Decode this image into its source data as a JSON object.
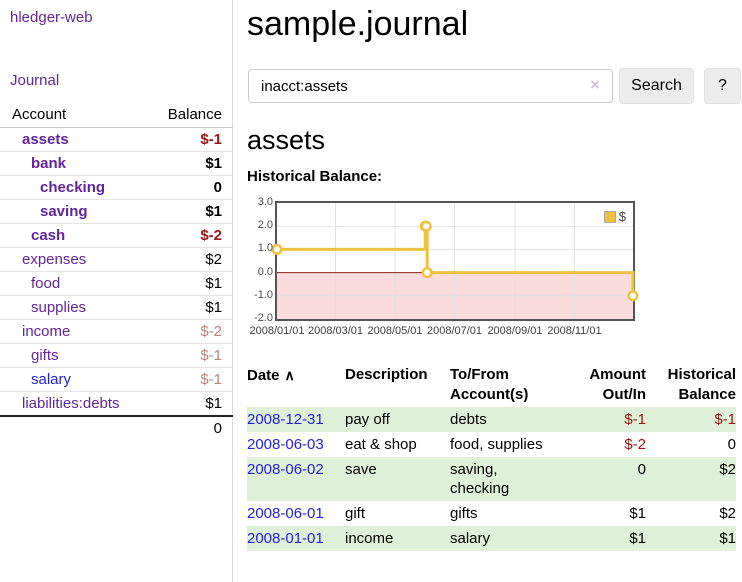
{
  "app_title": "hledger-web",
  "sidebar": {
    "journal_link": "Journal",
    "accounts": {
      "col_account": "Account",
      "col_balance": "Balance",
      "rows": [
        {
          "name": "assets",
          "depth": 1,
          "bold": true,
          "balance": "$-1",
          "neg": "strong"
        },
        {
          "name": "bank",
          "depth": 2,
          "bold": true,
          "balance": "$1",
          "neg": "none"
        },
        {
          "name": "checking",
          "depth": 3,
          "bold": true,
          "balance": "0",
          "neg": "none"
        },
        {
          "name": "saving",
          "depth": 3,
          "bold": true,
          "balance": "$1",
          "neg": "none"
        },
        {
          "name": "cash",
          "depth": 2,
          "bold": true,
          "balance": "$-2",
          "neg": "strong"
        },
        {
          "name": "expenses",
          "depth": 1,
          "bold": false,
          "balance": "$2",
          "neg": "none"
        },
        {
          "name": "food",
          "depth": 2,
          "bold": false,
          "balance": "$1",
          "neg": "none"
        },
        {
          "name": "supplies",
          "depth": 2,
          "bold": false,
          "balance": "$1",
          "neg": "none"
        },
        {
          "name": "income",
          "depth": 1,
          "bold": false,
          "balance": "$-2",
          "neg": "faded"
        },
        {
          "name": "gifts",
          "depth": 2,
          "bold": false,
          "balance": "$-1",
          "neg": "faded"
        },
        {
          "name": "salary",
          "depth": 2,
          "bold": false,
          "balance": "$-1",
          "neg": "faded",
          "link_color": "blue"
        },
        {
          "name": "liabilities:debts",
          "depth": 1,
          "bold": false,
          "balance": "$1",
          "neg": "none"
        }
      ],
      "total": "0"
    }
  },
  "main": {
    "title": "sample.journal",
    "search": {
      "value": "inacct:assets",
      "clear_icon": "×",
      "search_button": "Search",
      "help_button": "?"
    },
    "account_heading": "assets",
    "section_label": "Historical Balance:"
  },
  "chart_data": {
    "type": "line",
    "line_style": "step",
    "series": [
      {
        "name": "$",
        "color": "#edc240",
        "point_fill": "#ffffff",
        "points": [
          [
            "2008-01-01",
            1.0
          ],
          [
            "2008-06-01",
            2.0
          ],
          [
            "2008-06-02",
            2.0
          ],
          [
            "2008-06-03",
            0.0
          ],
          [
            "2008-12-31",
            -1.0
          ]
        ]
      }
    ],
    "x_range": [
      "2008-01-01",
      "2008-12-31"
    ],
    "ylim": [
      -2.0,
      3.0
    ],
    "y_ticks": [
      {
        "v": 3,
        "label": "3.0"
      },
      {
        "v": 2,
        "label": "2.0"
      },
      {
        "v": 1,
        "label": "1.0"
      },
      {
        "v": 0,
        "label": "0.0"
      },
      {
        "v": -1,
        "label": "-1.0"
      },
      {
        "v": -2,
        "label": "-2.0"
      }
    ],
    "x_ticks": [
      {
        "date": "2008-01-01",
        "label": "2008/01/01"
      },
      {
        "date": "2008-03-01",
        "label": "2008/03/01"
      },
      {
        "date": "2008-05-01",
        "label": "2008/05/01"
      },
      {
        "date": "2008-07-01",
        "label": "2008/07/01"
      },
      {
        "date": "2008-09-01",
        "label": "2008/09/01"
      },
      {
        "date": "2008-11-01",
        "label": "2008/11/01"
      }
    ],
    "legend": {
      "label": "$",
      "position": "top-right"
    },
    "grid": {
      "border_color": "#545454",
      "line_color": "#e2e2e2",
      "zero_line_color": "#8b1a1a",
      "negative_fill": "#fbdcdc"
    }
  },
  "register": {
    "headers": {
      "date": "Date",
      "sort_icon": "∧",
      "description": "Description",
      "tofrom": "To/From Account(s)",
      "amount": "Amount Out/In",
      "balance": "Historical Balance"
    },
    "rows": [
      {
        "date": "2008-12-31",
        "description": "pay off",
        "accounts": "debts",
        "amount": "$-1",
        "amount_neg": true,
        "balance": "$-1",
        "balance_neg": true
      },
      {
        "date": "2008-06-03",
        "description": "eat & shop",
        "accounts": "food, supplies",
        "amount": "$-2",
        "amount_neg": true,
        "balance": "0",
        "balance_neg": false
      },
      {
        "date": "2008-06-02",
        "description": "save",
        "accounts": "saving, checking",
        "amount": "0",
        "amount_neg": false,
        "balance": "$2",
        "balance_neg": false
      },
      {
        "date": "2008-06-01",
        "description": "gift",
        "accounts": "gifts",
        "amount": "$1",
        "amount_neg": false,
        "balance": "$2",
        "balance_neg": false
      },
      {
        "date": "2008-01-01",
        "description": "income",
        "accounts": "salary",
        "amount": "$1",
        "amount_neg": false,
        "balance": "$1",
        "balance_neg": false
      }
    ]
  }
}
